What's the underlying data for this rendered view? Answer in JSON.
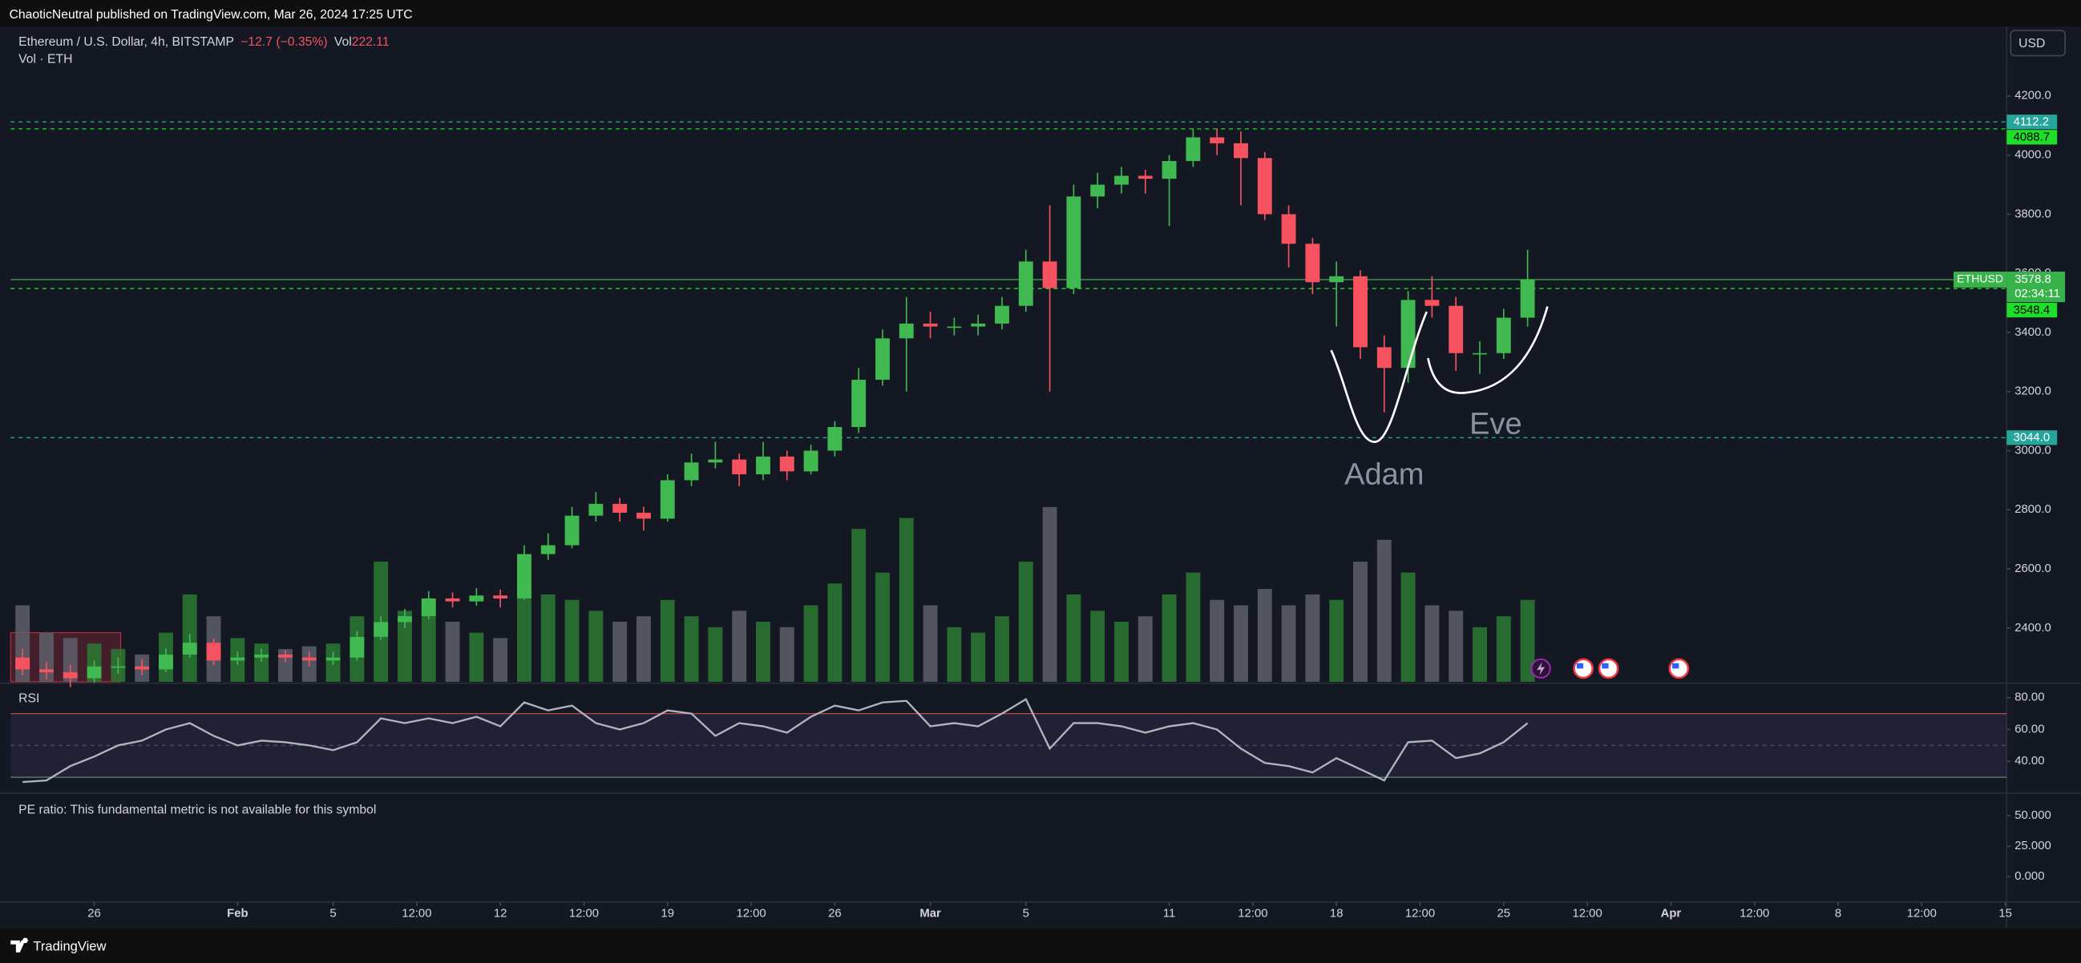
{
  "header": {
    "published": "ChaoticNeutral published on TradingView.com, Mar 26, 2024 17:25 UTC"
  },
  "footer": {
    "brand": "TradingView"
  },
  "chart_data": [
    {
      "type": "candlestick",
      "title": "Ethereum / U.S. Dollar, 4h, BITSTAMP",
      "change": "−12.7 (−0.35%)",
      "volume_label": "Vol",
      "volume_value": "222.11",
      "volume_title": "Vol · ETH",
      "currency": "USD",
      "symbol": "ETHUSD",
      "countdown": "02:34:11",
      "x": [
        23,
        24,
        25,
        26,
        27,
        28,
        29,
        30,
        31,
        32,
        33,
        34,
        35,
        36,
        37,
        38,
        39,
        40,
        41,
        42,
        43,
        44,
        45,
        46,
        47,
        48,
        49,
        50,
        51,
        52,
        53,
        54,
        55,
        56,
        57,
        58,
        59,
        60,
        61,
        62,
        63,
        64,
        65,
        66,
        67,
        68,
        69,
        70,
        71,
        72,
        73,
        74,
        75,
        76,
        77,
        78,
        79,
        80,
        81,
        82,
        83,
        84,
        85,
        86
      ],
      "open": [
        2300,
        2260,
        2250,
        2230,
        2270,
        2270,
        2260,
        2310,
        2350,
        2290,
        2300,
        2310,
        2300,
        2290,
        2300,
        2370,
        2420,
        2440,
        2500,
        2490,
        2510,
        2500,
        2650,
        2680,
        2780,
        2820,
        2790,
        2770,
        2900,
        2960,
        2970,
        2920,
        2980,
        2930,
        3000,
        3080,
        3240,
        3380,
        3430,
        3420,
        3420,
        3430,
        3490,
        3640,
        3550,
        3860,
        3900,
        3930,
        3920,
        3980,
        4060,
        4040,
        3990,
        3800,
        3700,
        3570,
        3590,
        3350,
        3280,
        3510,
        3490,
        3330,
        3330,
        3450
      ],
      "high": [
        2330,
        2285,
        2275,
        2290,
        2300,
        2295,
        2330,
        2380,
        2365,
        2320,
        2330,
        2325,
        2320,
        2320,
        2390,
        2440,
        2465,
        2525,
        2520,
        2535,
        2530,
        2680,
        2720,
        2810,
        2860,
        2840,
        2810,
        2920,
        2990,
        3030,
        2990,
        3030,
        3000,
        3020,
        3100,
        3280,
        3410,
        3520,
        3470,
        3450,
        3460,
        3520,
        3680,
        3830,
        3900,
        3940,
        3960,
        3950,
        4000,
        4090,
        4090,
        4080,
        4010,
        3830,
        3720,
        3640,
        3610,
        3390,
        3540,
        3590,
        3520,
        3370,
        3480,
        3680
      ],
      "low": [
        2240,
        2225,
        2200,
        2215,
        2245,
        2240,
        2250,
        2300,
        2275,
        2275,
        2285,
        2285,
        2270,
        2275,
        2290,
        2360,
        2400,
        2430,
        2470,
        2475,
        2470,
        2495,
        2630,
        2670,
        2760,
        2760,
        2730,
        2760,
        2880,
        2940,
        2880,
        2900,
        2900,
        2920,
        2980,
        3060,
        3220,
        3200,
        3380,
        3390,
        3390,
        3410,
        3470,
        3200,
        3530,
        3820,
        3870,
        3870,
        3760,
        3960,
        4000,
        3830,
        3780,
        3620,
        3530,
        3420,
        3310,
        3130,
        3230,
        3450,
        3270,
        3260,
        3310,
        3420
      ],
      "close": [
        2260,
        2250,
        2230,
        2270,
        2270,
        2260,
        2310,
        2350,
        2290,
        2300,
        2310,
        2300,
        2290,
        2300,
        2370,
        2420,
        2440,
        2500,
        2490,
        2510,
        2500,
        2650,
        2680,
        2780,
        2820,
        2790,
        2770,
        2900,
        2960,
        2970,
        2920,
        2980,
        2930,
        3000,
        3080,
        3240,
        3380,
        3430,
        3420,
        3420,
        3430,
        3490,
        3640,
        3550,
        3860,
        3900,
        3930,
        3920,
        3980,
        4060,
        4040,
        3990,
        3800,
        3700,
        3570,
        3590,
        3350,
        3280,
        3510,
        3490,
        3330,
        3330,
        3450,
        3578.8
      ],
      "volume": [
        14000,
        9000,
        8000,
        7000,
        6000,
        5000,
        9000,
        16000,
        12000,
        8000,
        7000,
        6000,
        6500,
        7000,
        12000,
        22000,
        13000,
        15000,
        11000,
        9000,
        8000,
        18000,
        16000,
        15000,
        13000,
        11000,
        12000,
        15000,
        12000,
        10000,
        13000,
        11000,
        10000,
        14000,
        18000,
        28000,
        20000,
        30000,
        14000,
        10000,
        9000,
        12000,
        22000,
        32000,
        16000,
        13000,
        11000,
        12000,
        16000,
        20000,
        15000,
        14000,
        17000,
        14000,
        16000,
        15000,
        22000,
        26000,
        20000,
        14000,
        13000,
        10000,
        12000,
        15000
      ],
      "volume_ylim": [
        0,
        120000
      ],
      "colors": {
        "up": "#3fb950",
        "down": "#f7525f",
        "volume_up": "#2a7a33",
        "volume_down": "#5d606b",
        "last": "#38b24a"
      },
      "xlim": [
        22.5,
        106
      ],
      "xticks": [
        26,
        {
          "value": 32,
          "label": "Feb"
        },
        {
          "value": 36,
          "label": "5"
        },
        {
          "value": 39.5,
          "label": "12:00"
        },
        {
          "value": 43,
          "label": "12"
        },
        {
          "value": 46.5,
          "label": "12:00"
        },
        {
          "value": 50,
          "label": "19"
        },
        {
          "value": 53.5,
          "label": "12:00"
        },
        {
          "value": 57,
          "label": "26"
        },
        {
          "value": 61,
          "label": "Mar"
        },
        {
          "value": 65,
          "label": "5"
        },
        {
          "value": 71,
          "label": "11"
        },
        {
          "value": 74.5,
          "label": "12:00"
        },
        {
          "value": 78,
          "label": "18"
        },
        {
          "value": 81.5,
          "label": "12:00"
        },
        {
          "value": 85,
          "label": "25"
        },
        {
          "value": 88.5,
          "label": "12:00"
        },
        {
          "value": 92,
          "label": "Apr"
        },
        {
          "value": 95.5,
          "label": "12:00"
        },
        {
          "value": 99,
          "label": "8"
        },
        {
          "value": 102.5,
          "label": "12:00"
        },
        {
          "value": 106,
          "label": "15"
        }
      ],
      "ylim": [
        2218,
        4435
      ],
      "yticks": [
        {
          "value": 2400,
          "label": "2400.0"
        },
        {
          "value": 2600,
          "label": "2600.0"
        },
        {
          "value": 2800,
          "label": "2800.0"
        },
        {
          "value": 3000,
          "label": "3000.0"
        },
        {
          "value": 3200,
          "label": "3200.0"
        },
        {
          "value": 3400,
          "label": "3400.0"
        },
        {
          "value": 3600,
          "label": "3600.0"
        },
        {
          "value": 3800,
          "label": "3800.0"
        },
        {
          "value": 4000,
          "label": "4000.0"
        },
        {
          "value": 4200,
          "label": "4200.0"
        }
      ],
      "levels": [
        {
          "price": 4112.2,
          "color": "#26a69a",
          "text_color": "#ffffff"
        },
        {
          "price": 4088.7,
          "color": "#1fde29",
          "text_color": "#000000"
        },
        {
          "price": 3548.4,
          "color": "#1fde29",
          "text_color": "#000000"
        },
        {
          "price": 3044,
          "label": "3044.0",
          "color": "#26a69a",
          "text_color": "#ffffff"
        }
      ],
      "annotations": [
        "Adam",
        "Eve"
      ]
    },
    {
      "type": "line",
      "title": "RSI",
      "values": [
        27,
        28,
        37,
        43,
        50,
        53,
        60,
        64,
        56,
        50,
        53,
        52,
        50,
        47,
        52,
        67,
        64,
        67,
        64,
        68,
        62,
        77,
        72,
        75,
        64,
        60,
        64,
        72,
        70,
        56,
        64,
        62,
        58,
        68,
        75,
        72,
        77,
        78,
        62,
        64,
        62,
        70,
        79,
        48,
        64,
        64,
        62,
        58,
        62,
        64,
        60,
        48,
        39,
        37,
        33,
        42,
        35,
        28,
        52,
        53,
        42,
        45,
        52,
        64
      ],
      "color": "#b2b5be",
      "bands": {
        "upper": 70,
        "middle": 50,
        "lower": 30
      },
      "band_colors": {
        "upper": "#b8434d",
        "middle": "#4b4f5c",
        "lower": "#5a8c6a",
        "fill": "#7e57c2"
      },
      "ylim": [
        20.8,
        88.3
      ],
      "yticks": [
        {
          "value": 40,
          "label": "40.00"
        },
        {
          "value": 60,
          "label": "60.00"
        },
        {
          "value": 80,
          "label": "80.00"
        }
      ]
    },
    {
      "type": "empty",
      "title": "PE ratio: This fundamental metric is not available for this symbol",
      "ylim": [
        -20.7,
        67.4
      ],
      "yticks": [
        {
          "value": 0,
          "label": "0.000"
        },
        {
          "value": 25,
          "label": "25.000"
        },
        {
          "value": 50,
          "label": "50.000"
        }
      ]
    }
  ]
}
